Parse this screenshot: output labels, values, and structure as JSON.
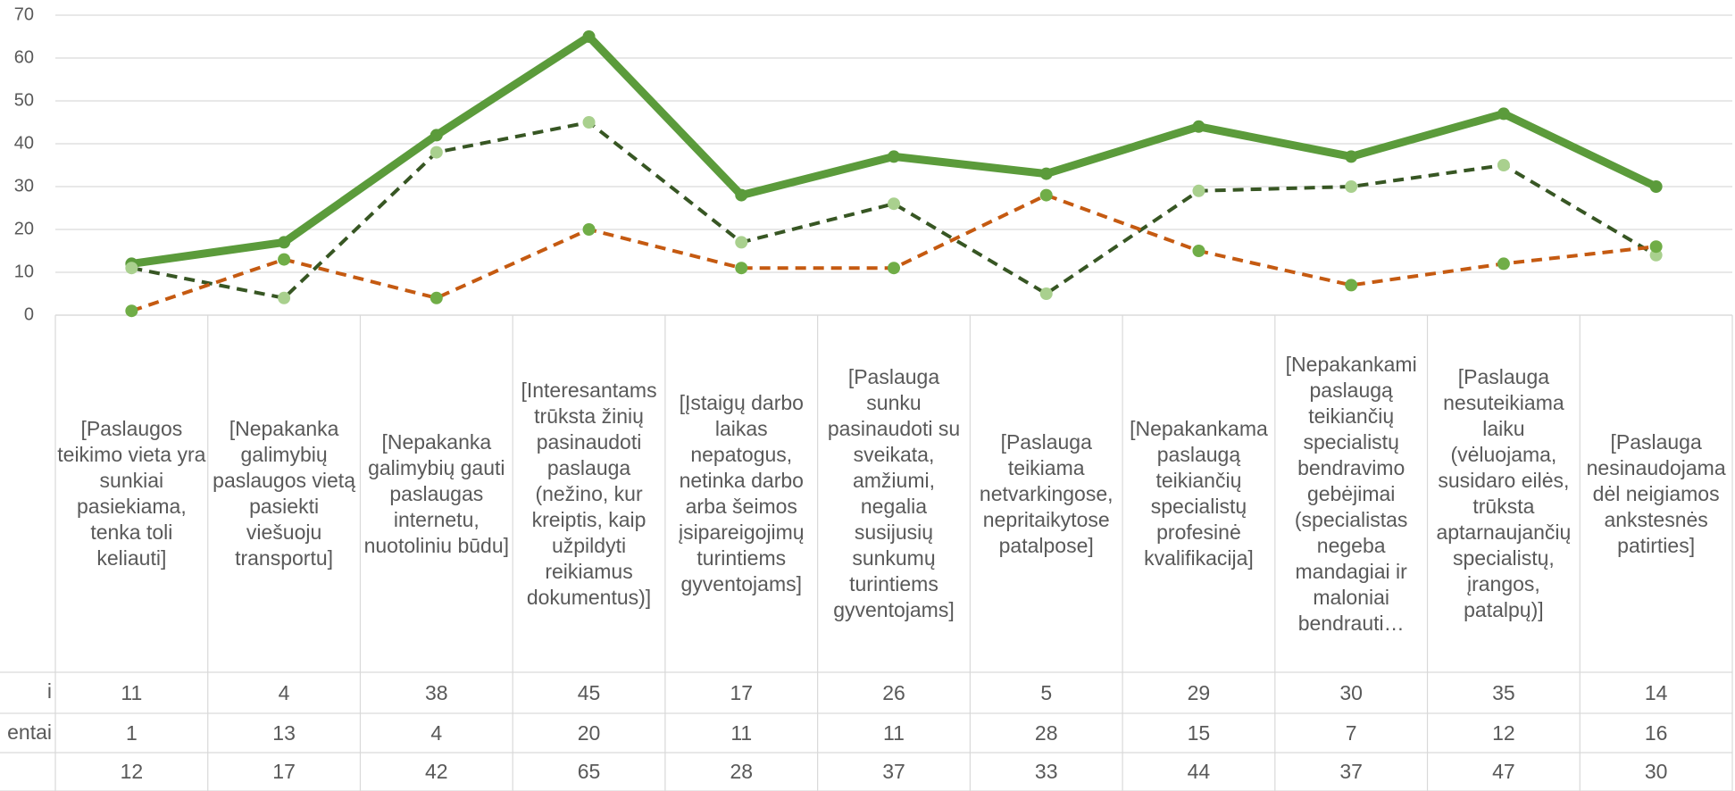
{
  "chart_data": {
    "type": "line",
    "categories": [
      "[Paslaugos teikimo vieta yra sunkiai pasiekiama, tenka toli keliauti]",
      "[Nepakanka galimybių paslaugos vietą pasiekti viešuoju transportu]",
      "[Nepakanka galimybių gauti paslaugas internetu, nuotoliniu būdu]",
      "[Interesantams trūksta žinių pasinaudoti paslauga (nežino, kur kreiptis, kaip užpildyti reikiamus dokumentus)]",
      "[Įstaigų darbo laikas nepatogus, netinka darbo arba šeimos įsipareigojimų turintiems gyventojams]",
      "[Paslauga sunku pasinaudoti su sveikata, amžiumi, negalia susijusių sunkumų turintiems gyventojams]",
      "[Paslauga teikiama netvarkingose, nepritaikytose patalpose]",
      "[Nepakankama paslaugą teikiančių specialistų profesinė kvalifikacija]",
      "[Nepakankami paslaugą teikiančių specialistų bendravimo gebėjimai (specialistas negeba mandagiai ir maloniai bendrauti…",
      "[Paslauga nesuteikiama laiku (vėluojama, susidaro eilės, trūksta aptarnaujančių specialistų, įrangos, patalpų)]",
      "[Paslauga nesinaudojama dėl neigiamos ankstesnės patirties]"
    ],
    "series": [
      {
        "name": "i",
        "color": "#375623",
        "marker_color": "#a9d08e",
        "dash": true,
        "values": [
          11,
          4,
          38,
          45,
          17,
          26,
          5,
          29,
          30,
          35,
          14
        ]
      },
      {
        "name": "entai",
        "color": "#c55a11",
        "marker_color": "#70ad47",
        "dash": true,
        "values": [
          1,
          13,
          4,
          20,
          11,
          11,
          28,
          15,
          7,
          12,
          16
        ]
      },
      {
        "color": "#5b9b3b",
        "marker_color": "#5b9b3b",
        "dash": false,
        "values": [
          12,
          17,
          42,
          65,
          28,
          37,
          33,
          44,
          37,
          47,
          30
        ]
      }
    ],
    "ylim": [
      0,
      70
    ],
    "yticks": [
      0,
      10,
      20,
      30,
      40,
      50,
      60,
      70
    ],
    "grid": true
  }
}
